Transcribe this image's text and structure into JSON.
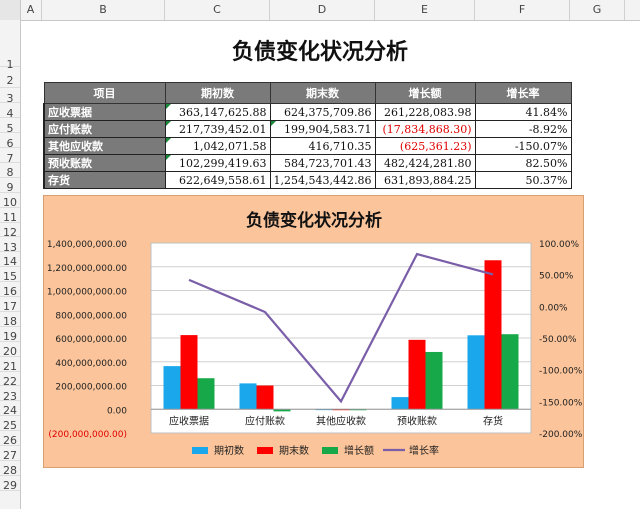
{
  "columns": [
    "A",
    "B",
    "C",
    "D",
    "E",
    "F",
    "G"
  ],
  "rows": [
    "1",
    "2",
    "3",
    "4",
    "5",
    "6",
    "7",
    "8",
    "9",
    "10",
    "11",
    "12",
    "13",
    "14",
    "15",
    "16",
    "17",
    "18",
    "19",
    "20",
    "21",
    "22",
    "23",
    "24",
    "25",
    "26",
    "27",
    "28",
    "29"
  ],
  "sheet_title": "负债变化状况分析",
  "table": {
    "headers": [
      "项目",
      "期初数",
      "期末数",
      "增长额",
      "增长率"
    ],
    "rows": [
      {
        "label": "应收票据",
        "start": "363,147,625.88",
        "end": "624,375,709.86",
        "change": "261,228,083.98",
        "rate": "41.84%"
      },
      {
        "label": "应付账款",
        "start": "217,739,452.01",
        "end": "199,904,583.71",
        "change": "(17,834,868.30)",
        "rate": "-8.92%"
      },
      {
        "label": "其他应收款",
        "start": "1,042,071.58",
        "end": "416,710.35",
        "change": "(625,361.23)",
        "rate": "-150.07%"
      },
      {
        "label": "预收账款",
        "start": "102,299,419.63",
        "end": "584,723,701.43",
        "change": "482,424,281.80",
        "rate": "82.50%"
      },
      {
        "label": "存货",
        "start": "622,649,558.61",
        "end": "1,254,543,442.86",
        "change": "631,893,884.25",
        "rate": "50.37%"
      }
    ]
  },
  "colors": {
    "start": "#1aa7ec",
    "end": "#ff0000",
    "change": "#17a84a",
    "rate": "#7a5ea8",
    "chart_bg": "#fbc49a",
    "negative": "#e00000"
  },
  "chart_data": {
    "type": "bar",
    "title": "负债变化状况分析",
    "categories": [
      "应收票据",
      "应付账款",
      "其他应收款",
      "预收账款",
      "存货"
    ],
    "series": [
      {
        "name": "期初数",
        "type": "bar",
        "axis": "left",
        "values": [
          363147625.88,
          217739452.01,
          1042071.58,
          102299419.63,
          622649558.61
        ]
      },
      {
        "name": "期末数",
        "type": "bar",
        "axis": "left",
        "values": [
          624375709.86,
          199904583.71,
          416710.35,
          584723701.43,
          1254543442.86
        ]
      },
      {
        "name": "增长额",
        "type": "bar",
        "axis": "left",
        "values": [
          261228083.98,
          -17834868.3,
          -625361.23,
          482424281.8,
          631893884.25
        ]
      },
      {
        "name": "增长率",
        "type": "line",
        "axis": "right",
        "values": [
          41.84,
          -8.92,
          -150.07,
          82.5,
          50.37
        ]
      }
    ],
    "y_left": {
      "min": -200000000,
      "max": 1400000000,
      "step": 200000000,
      "tick_labels": [
        "(200,000,000.00)",
        "0.00",
        "200,000,000.00",
        "400,000,000.00",
        "600,000,000.00",
        "800,000,000.00",
        "1,000,000,000.00",
        "1,200,000,000.00",
        "1,400,000,000.00"
      ]
    },
    "y_right": {
      "min": -200,
      "max": 100,
      "step": 50,
      "tick_labels": [
        "-200.00%",
        "-150.00%",
        "-100.00%",
        "-50.00%",
        "0.00%",
        "50.00%",
        "100.00%"
      ]
    },
    "grid": true,
    "legend": "bottom"
  }
}
